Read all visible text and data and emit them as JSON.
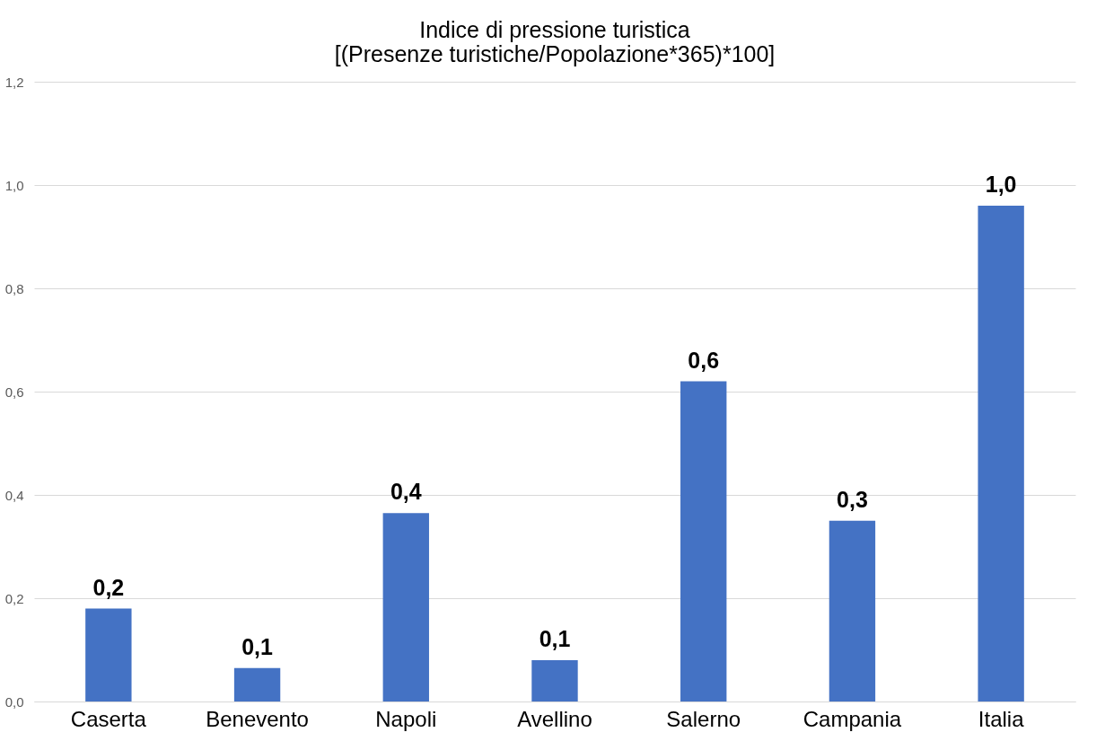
{
  "chart_data": {
    "type": "bar",
    "title": [
      "Indice di pressione turistica",
      "[(Presenze turistiche/Popolazione*365)*100]"
    ],
    "categories": [
      "Caserta",
      "Benevento",
      "Napoli",
      "Avellino",
      "Salerno",
      "Campania",
      "Italia"
    ],
    "values": [
      0.18,
      0.065,
      0.365,
      0.08,
      0.62,
      0.35,
      0.96
    ],
    "value_labels": [
      "0,2",
      "0,1",
      "0,4",
      "0,1",
      "0,6",
      "0,3",
      "1,0"
    ],
    "color": "#4472c4",
    "ylim": [
      0,
      1.2
    ],
    "yticks": [
      {
        "value": 0,
        "label": "0,0"
      },
      {
        "value": 0.2,
        "label": "0,2"
      },
      {
        "value": 0.4,
        "label": "0,4"
      },
      {
        "value": 0.6,
        "label": "0,6"
      },
      {
        "value": 0.8,
        "label": "0,8"
      },
      {
        "value": 1.0,
        "label": "1,0"
      },
      {
        "value": 1.2,
        "label": "1,2"
      }
    ],
    "grid": "y"
  }
}
